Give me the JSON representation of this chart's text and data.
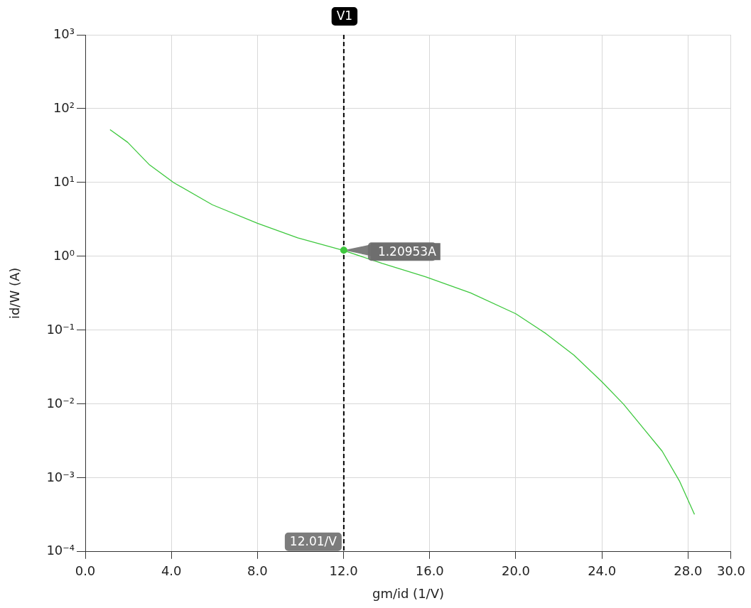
{
  "chart_data": {
    "type": "line",
    "xlabel": "gm/id (1/V)",
    "ylabel": "id/W (A)",
    "series": [
      {
        "color": "#3ec83e",
        "x": [
          1.15,
          1.97,
          2.96,
          4.1,
          5.9,
          8.0,
          9.87,
          12.0,
          13.8,
          15.8,
          17.9,
          20.0,
          21.4,
          22.7,
          24.0,
          25.0,
          25.95,
          26.8,
          27.6,
          28.3
        ],
        "values": [
          52,
          35,
          17.6,
          10,
          5.0,
          2.8,
          1.78,
          1.2,
          0.8,
          0.53,
          0.32,
          0.167,
          0.09,
          0.046,
          0.02,
          0.01,
          0.0046,
          0.0023,
          0.00091,
          0.00032
        ]
      }
    ],
    "log": "y",
    "xlim": [
      0,
      30
    ],
    "xticks": [
      {
        "value": 0,
        "label": "0.0"
      },
      {
        "value": 4,
        "label": "4.0"
      },
      {
        "value": 8,
        "label": "8.0"
      },
      {
        "value": 12,
        "label": "12.0"
      },
      {
        "value": 16,
        "label": "16.0"
      },
      {
        "value": 20,
        "label": "20.0"
      },
      {
        "value": 24,
        "label": "24.0"
      },
      {
        "value": 28,
        "label": "28.0"
      },
      {
        "value": 30,
        "label": "30.0"
      }
    ],
    "ylim": [
      0.0001,
      1000
    ],
    "yticks": [
      {
        "value": 0.0001,
        "label": "10⁻⁴"
      },
      {
        "value": 0.001,
        "label": "10⁻³"
      },
      {
        "value": 0.01,
        "label": "10⁻²"
      },
      {
        "value": 0.1,
        "label": "10⁻¹"
      },
      {
        "value": 1,
        "label": "10⁰"
      },
      {
        "value": 10,
        "label": "10¹"
      },
      {
        "value": 100,
        "label": "10²"
      },
      {
        "value": 1000,
        "label": "10³"
      }
    ],
    "grid": true,
    "legend": false,
    "marker": "none",
    "line_style": "solid",
    "ref_lines": [
      {
        "axis": "x",
        "value": 12.01,
        "label": "V1",
        "color": "#000000",
        "line_style": "dashed"
      }
    ],
    "annotations": [
      {
        "text": "12.01/V",
        "x": 12.01
      },
      {
        "text": "1.20953A",
        "x": 12.01,
        "y": 1.20953
      }
    ]
  }
}
